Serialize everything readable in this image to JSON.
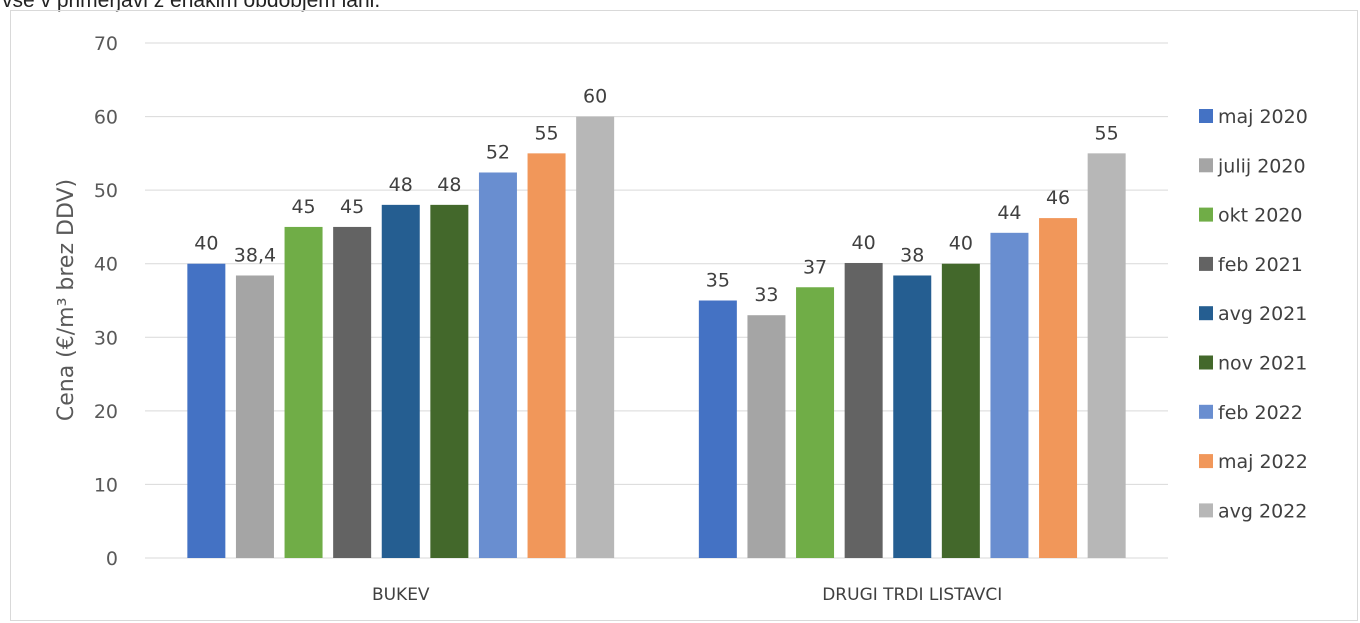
{
  "caption": "vse v primerjavi z enakim obdobjem lani.",
  "chart_data": {
    "type": "bar",
    "title": "",
    "ylabel": "Cena (€/m³ brez DDV)",
    "xlabel": "",
    "ylim": [
      0,
      70
    ],
    "yticks": [
      0,
      10,
      20,
      30,
      40,
      50,
      60,
      70
    ],
    "grid": true,
    "legend_position": "right",
    "categories": [
      "BUKEV",
      "DRUGI TRDI LISTAVCI"
    ],
    "series": [
      {
        "name": "maj 2020",
        "color": "#4472c4",
        "values": [
          40,
          35
        ],
        "labels": [
          "40",
          "35"
        ]
      },
      {
        "name": "julij 2020",
        "color": "#a5a5a5",
        "values": [
          38.4,
          33
        ],
        "labels": [
          "38,4",
          "33"
        ]
      },
      {
        "name": "okt 2020",
        "color": "#70ad47",
        "values": [
          45,
          36.8
        ],
        "labels": [
          "45",
          "37"
        ]
      },
      {
        "name": "feb 2021",
        "color": "#636363",
        "values": [
          45,
          40.1
        ],
        "labels": [
          "45",
          "40"
        ]
      },
      {
        "name": "avg 2021",
        "color": "#255e91",
        "values": [
          48,
          38.4
        ],
        "labels": [
          "48",
          "38"
        ]
      },
      {
        "name": "nov 2021",
        "color": "#43682b",
        "values": [
          48,
          40
        ],
        "labels": [
          "48",
          "40"
        ]
      },
      {
        "name": "feb 2022",
        "color": "#698ed0",
        "values": [
          52.4,
          44.2
        ],
        "labels": [
          "52",
          "44"
        ]
      },
      {
        "name": "maj 2022",
        "color": "#f1975a",
        "values": [
          55,
          46.2
        ],
        "labels": [
          "55",
          "46"
        ]
      },
      {
        "name": "avg 2022",
        "color": "#b7b7b7",
        "values": [
          60,
          55
        ],
        "labels": [
          "60",
          "55"
        ]
      }
    ]
  }
}
